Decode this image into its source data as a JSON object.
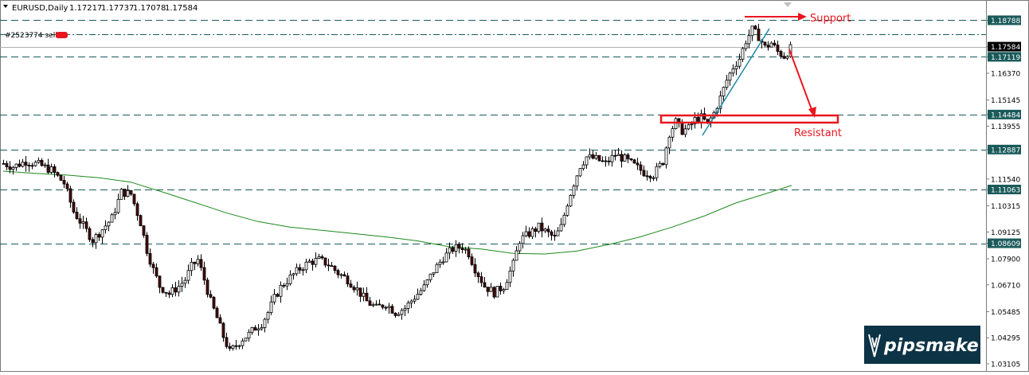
{
  "header": {
    "symbol": "EURUSD,Daily",
    "open": "1.17217",
    "high": "1.17737",
    "low": "1.17078",
    "close": "1.17584"
  },
  "order": {
    "label": "#2523774 sell"
  },
  "annotations": {
    "support": "Support",
    "resistant": "Resistant"
  },
  "logo": {
    "text": "pipsmake"
  },
  "colors": {
    "bull": "#ffffff",
    "bear": "#4a0a0a",
    "candle_outline": "#000000",
    "ma": "#1c8a1c",
    "level_line": "#1a5a5a",
    "annotation": "#e8171f",
    "tag_bg": "#1a5a5a",
    "bid_bg": "#000000",
    "trendline": "#1a8aa8",
    "logo_bg": "#0d3346"
  },
  "chart_data": {
    "type": "candlestick",
    "timeframe": "Daily",
    "y_range": [
      1.0285,
      1.1935
    ],
    "y_ticks": [
      "1.18788",
      "1.17584",
      "1.17119",
      "1.16370",
      "1.15145",
      "1.14484",
      "1.13955",
      "1.12887",
      "1.11540",
      "1.11063",
      "1.10315",
      "1.09125",
      "1.08609",
      "1.07900",
      "1.06710",
      "1.05485",
      "1.04295",
      "1.03105"
    ],
    "highlighted_levels": [
      {
        "value": 1.18788,
        "style": "dashed",
        "label": "1.18788"
      },
      {
        "value": 1.17119,
        "style": "dashed",
        "label": "1.17119"
      },
      {
        "value": 1.14484,
        "style": "dashed",
        "label": "1.14484"
      },
      {
        "value": 1.12887,
        "style": "dashed",
        "label": "1.12887"
      },
      {
        "value": 1.11063,
        "style": "dashed",
        "label": "1.11063"
      },
      {
        "value": 1.08609,
        "style": "dashed",
        "label": "1.08609"
      }
    ],
    "order_level": {
      "value": 1.1815,
      "style": "dash-dot"
    },
    "bid_level": {
      "value": 1.17584,
      "label": "1.17584"
    },
    "moving_average": [
      [
        0,
        1.119
      ],
      [
        20,
        1.118
      ],
      [
        40,
        1.1172
      ],
      [
        60,
        1.116
      ],
      [
        80,
        1.114
      ],
      [
        100,
        1.1095
      ],
      [
        120,
        1.1048
      ],
      [
        140,
        1.1
      ],
      [
        160,
        1.096
      ],
      [
        180,
        1.0935
      ],
      [
        200,
        1.092
      ],
      [
        220,
        1.0905
      ],
      [
        240,
        1.089
      ],
      [
        260,
        1.0872
      ],
      [
        280,
        1.0845
      ],
      [
        300,
        1.0835
      ],
      [
        320,
        1.0815
      ],
      [
        340,
        1.0812
      ],
      [
        360,
        1.0825
      ],
      [
        380,
        1.0855
      ],
      [
        400,
        1.089
      ],
      [
        420,
        1.0935
      ],
      [
        440,
        1.0985
      ],
      [
        460,
        1.1045
      ],
      [
        480,
        1.109
      ],
      [
        495,
        1.1125
      ]
    ],
    "candle_count": 496,
    "candle_spacing_units": 1,
    "candle_anchor_points": [
      [
        0,
        1.1225
      ],
      [
        6,
        1.121
      ],
      [
        14,
        1.1235
      ],
      [
        22,
        1.122
      ],
      [
        30,
        1.1195
      ],
      [
        38,
        1.1135
      ],
      [
        44,
        1.1005
      ],
      [
        50,
        1.094
      ],
      [
        56,
        1.0875
      ],
      [
        62,
        1.0925
      ],
      [
        68,
        1.0975
      ],
      [
        74,
        1.1095
      ],
      [
        80,
        1.1085
      ],
      [
        86,
        1.0955
      ],
      [
        90,
        1.083
      ],
      [
        94,
        1.074
      ],
      [
        98,
        1.0665
      ],
      [
        104,
        1.063
      ],
      [
        110,
        1.0665
      ],
      [
        114,
        1.0695
      ],
      [
        118,
        1.0755
      ],
      [
        122,
        1.0785
      ],
      [
        126,
        1.0695
      ],
      [
        130,
        1.0595
      ],
      [
        134,
        1.052
      ],
      [
        138,
        1.0435
      ],
      [
        142,
        1.0365
      ],
      [
        146,
        1.0395
      ],
      [
        150,
        1.0425
      ],
      [
        154,
        1.0445
      ],
      [
        158,
        1.0475
      ],
      [
        162,
        1.0495
      ],
      [
        166,
        1.0545
      ],
      [
        170,
        1.061
      ],
      [
        174,
        1.066
      ],
      [
        180,
        1.0705
      ],
      [
        186,
        1.0745
      ],
      [
        192,
        1.0775
      ],
      [
        198,
        1.0785
      ],
      [
        204,
        1.0765
      ],
      [
        210,
        1.0725
      ],
      [
        216,
        1.0695
      ],
      [
        222,
        1.065
      ],
      [
        228,
        1.0595
      ],
      [
        234,
        1.0565
      ],
      [
        240,
        1.0585
      ],
      [
        246,
        1.0545
      ],
      [
        252,
        1.0565
      ],
      [
        258,
        1.0615
      ],
      [
        264,
        1.066
      ],
      [
        270,
        1.0735
      ],
      [
        276,
        1.0795
      ],
      [
        282,
        1.0835
      ],
      [
        288,
        1.0845
      ],
      [
        292,
        1.0815
      ],
      [
        296,
        1.0745
      ],
      [
        302,
        1.0665
      ],
      [
        308,
        1.0635
      ],
      [
        314,
        1.0665
      ],
      [
        320,
        1.0765
      ],
      [
        324,
        1.0875
      ],
      [
        328,
        1.0895
      ],
      [
        332,
        1.0915
      ],
      [
        336,
        1.0935
      ],
      [
        340,
        1.0915
      ],
      [
        346,
        1.0885
      ],
      [
        350,
        1.0935
      ],
      [
        354,
        1.1045
      ],
      [
        358,
        1.1135
      ],
      [
        362,
        1.1215
      ],
      [
        366,
        1.1255
      ],
      [
        372,
        1.1245
      ],
      [
        378,
        1.1225
      ],
      [
        384,
        1.1265
      ],
      [
        390,
        1.1245
      ],
      [
        396,
        1.1215
      ],
      [
        402,
        1.1185
      ],
      [
        408,
        1.1175
      ],
      [
        414,
        1.1235
      ],
      [
        418,
        1.1365
      ],
      [
        422,
        1.1415
      ],
      [
        426,
        1.1375
      ],
      [
        430,
        1.1385
      ],
      [
        434,
        1.1425
      ],
      [
        438,
        1.1435
      ],
      [
        442,
        1.1405
      ],
      [
        446,
        1.1455
      ],
      [
        450,
        1.1525
      ],
      [
        454,
        1.1605
      ],
      [
        458,
        1.1665
      ],
      [
        462,
        1.1705
      ],
      [
        466,
        1.1785
      ],
      [
        470,
        1.1835
      ],
      [
        474,
        1.1805
      ],
      [
        478,
        1.1755
      ],
      [
        482,
        1.1775
      ],
      [
        486,
        1.1735
      ],
      [
        490,
        1.1715
      ],
      [
        495,
        1.1758
      ]
    ]
  }
}
